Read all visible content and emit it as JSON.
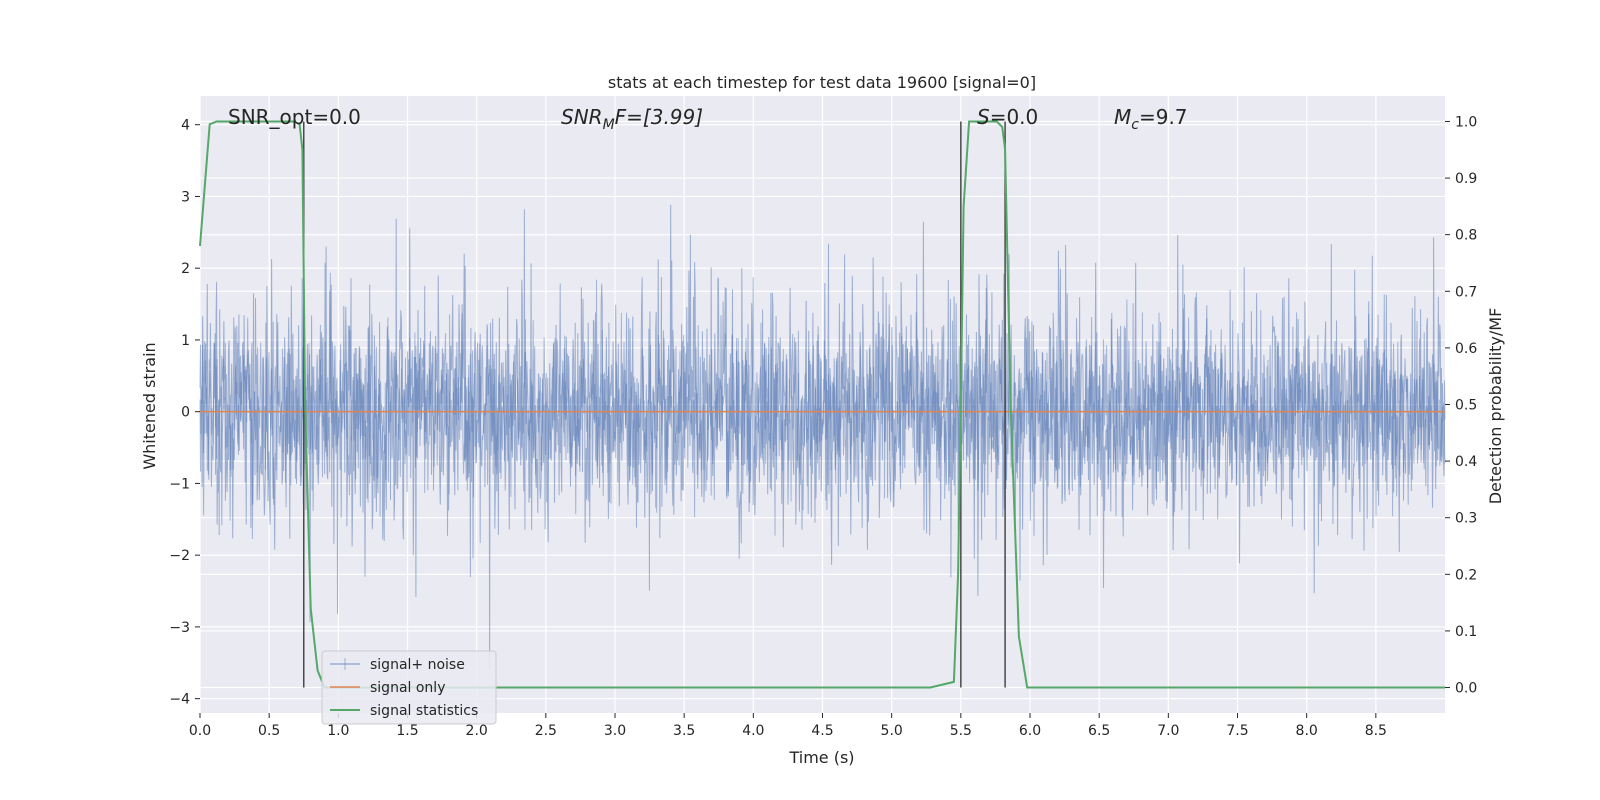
{
  "chart_data": {
    "type": "line",
    "title": "stats at each timestep for test data 19600 [signal=0]",
    "xlabel": "Time (s)",
    "ylabel": "Whitened strain",
    "ylabel_right": "Detection probability/MF",
    "xlim": [
      0,
      9.0
    ],
    "ylim": [
      -4.2,
      4.4
    ],
    "ylim_right": [
      -0.045,
      1.045
    ],
    "x_ticks": [
      "0.0",
      "0.5",
      "1.0",
      "1.5",
      "2.0",
      "2.5",
      "3.0",
      "3.5",
      "4.0",
      "4.5",
      "5.0",
      "5.5",
      "6.0",
      "6.5",
      "7.0",
      "7.5",
      "8.0",
      "8.5"
    ],
    "y_ticks": [
      "4",
      "3",
      "2",
      "1",
      "0",
      "−1",
      "−2",
      "−3",
      "−4"
    ],
    "y_right_ticks": [
      "1.0",
      "0.9",
      "0.8",
      "0.7",
      "0.6",
      "0.5",
      "0.4",
      "0.3",
      "0.2",
      "0.1",
      "0.0"
    ],
    "grid": true,
    "legend_position": "lower-left",
    "annotations": {
      "snr_opt": "SNR_opt=0.0",
      "snr_mf_main": "SNR",
      "snr_mf_sub": "M",
      "snr_mf_tail": "F=[3.99]",
      "s_main": "S",
      "s_tail": "=0.0",
      "mc_main": "M",
      "mc_sub": "c",
      "mc_tail": "=9.7"
    },
    "series": [
      {
        "name": "signal+ noise",
        "color": "#4c72b0",
        "description": "whitened strain noise, amplitude roughly within ±3"
      },
      {
        "name": "signal only",
        "color": "#dd8452",
        "x": [
          0,
          9.0
        ],
        "y": [
          0,
          0
        ]
      },
      {
        "name": "signal statistics",
        "color": "#55a868",
        "axis": "right",
        "x": [
          0,
          0.07,
          0.12,
          0.5,
          0.68,
          0.72,
          0.74,
          0.76,
          0.8,
          0.85,
          0.9,
          5.0,
          5.28,
          5.45,
          5.48,
          5.5,
          5.52,
          5.56,
          5.76,
          5.8,
          5.82,
          5.86,
          5.92,
          5.98,
          9.0
        ],
        "y": [
          0.78,
          0.995,
          1.0,
          1.0,
          1.0,
          0.995,
          0.95,
          0.5,
          0.14,
          0.03,
          0.0,
          0.0,
          0.0,
          0.01,
          0.2,
          0.5,
          0.85,
          1.0,
          1.0,
          0.99,
          0.95,
          0.5,
          0.09,
          0.0,
          0.0
        ]
      }
    ],
    "vlines": [
      0.75,
      5.5,
      5.82
    ]
  },
  "legend": {
    "items": [
      "signal+ noise",
      "signal only",
      "signal statistics"
    ]
  }
}
